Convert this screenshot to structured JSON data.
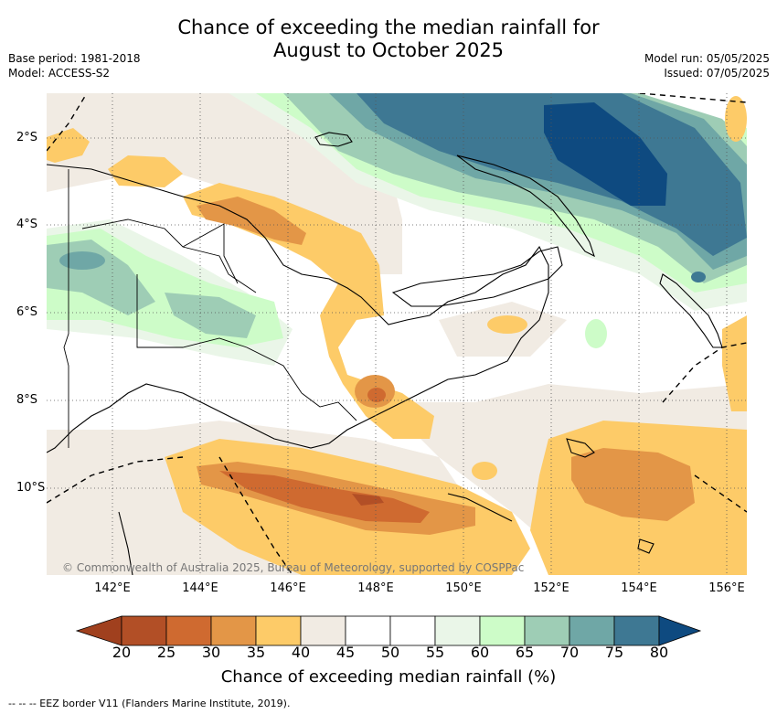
{
  "title": {
    "line1": "Chance of exceeding the median rainfall for",
    "line2": "August to October 2025"
  },
  "meta_left": {
    "base_period": "Base period: 1981-2018",
    "model": "Model: ACCESS-S2"
  },
  "meta_right": {
    "model_run": "Model run: 05/05/2025",
    "issued": "Issued: 07/05/2025"
  },
  "axes": {
    "lon_labels": [
      "142°E",
      "144°E",
      "146°E",
      "148°E",
      "150°E",
      "152°E",
      "154°E",
      "156°E"
    ],
    "lat_labels": [
      "2°S",
      "4°S",
      "6°S",
      "8°S",
      "10°S"
    ]
  },
  "colorbar": {
    "title": "Chance of exceeding median rainfall (%)",
    "ticks": [
      "20",
      "25",
      "30",
      "35",
      "40",
      "45",
      "50",
      "55",
      "60",
      "65",
      "70",
      "75",
      "80"
    ],
    "colors": {
      "below_20": "#a0401e",
      "20-25": "#b24f26",
      "25-30": "#cf6a30",
      "30-35": "#e39647",
      "35-40": "#fdcb68",
      "40-45": "#f1ebe3",
      "45-50": "#ffffff",
      "50-55": "#ffffff",
      "55-60": "#eaf6e8",
      "60-65": "#cdfcc8",
      "65-70": "#9ecdb5",
      "70-75": "#6fa7a6",
      "75-80": "#3e7893",
      "above_80": "#0e4a80"
    }
  },
  "copyright": "© Commonwealth of Australia 2025, Bureau of Meteorology, supported by COSPPac",
  "footer": "-- -- -- EEZ border V11 (Flanders Marine Institute, 2019)."
}
